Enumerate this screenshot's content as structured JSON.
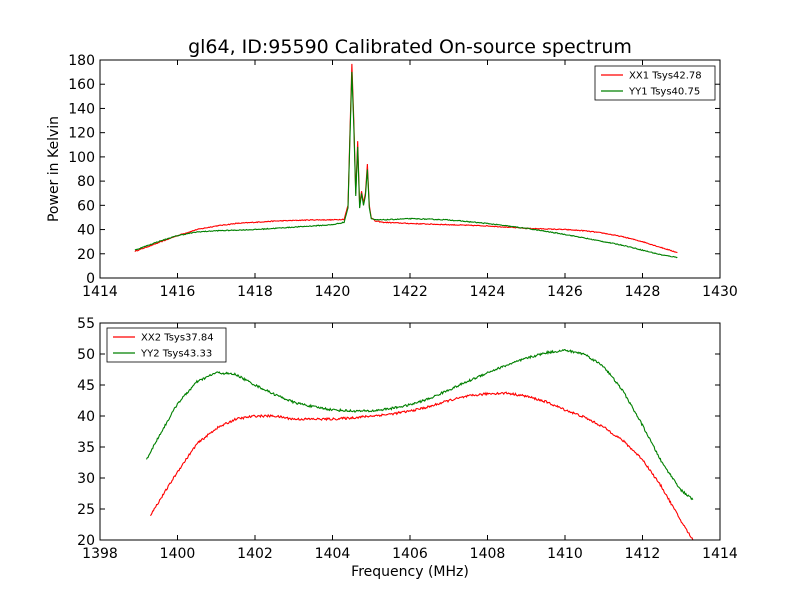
{
  "title": "gl64, ID:95590 Calibrated On-source spectrum",
  "colors": {
    "red": "#ff0000",
    "green": "#008000"
  },
  "chart_data": [
    {
      "type": "line",
      "ylabel": "Power in Kelvin",
      "xlabel": "",
      "xlim": [
        1414,
        1430
      ],
      "ylim": [
        0,
        180
      ],
      "xticks": [
        1414,
        1416,
        1418,
        1420,
        1422,
        1424,
        1426,
        1428,
        1430
      ],
      "yticks": [
        0,
        20,
        40,
        60,
        80,
        100,
        120,
        140,
        160,
        180
      ],
      "legend_position": "top-right",
      "series": [
        {
          "name": "XX1 Tsys42.78",
          "color": "#ff0000",
          "x": [
            1414.9,
            1415.5,
            1416.0,
            1416.5,
            1417.0,
            1417.5,
            1418.0,
            1418.5,
            1419.0,
            1419.5,
            1420.0,
            1420.3,
            1420.4,
            1420.45,
            1420.5,
            1420.55,
            1420.6,
            1420.65,
            1420.7,
            1420.75,
            1420.8,
            1420.85,
            1420.9,
            1420.95,
            1421.0,
            1421.1,
            1421.3,
            1422.0,
            1423.0,
            1424.0,
            1425.0,
            1426.0,
            1426.5,
            1427.0,
            1427.5,
            1428.0,
            1428.5,
            1428.9
          ],
          "values": [
            22,
            29,
            35,
            40,
            43,
            45,
            46,
            47,
            47.5,
            48,
            48,
            48.5,
            60,
            120,
            177,
            130,
            70,
            113,
            60,
            72,
            62,
            70,
            94,
            60,
            50,
            47,
            46,
            45,
            44,
            43,
            41,
            40,
            39,
            37,
            34,
            30,
            25,
            21
          ]
        },
        {
          "name": "YY1 Tsys40.75",
          "color": "#008000",
          "x": [
            1414.9,
            1415.5,
            1416.0,
            1416.5,
            1417.0,
            1417.5,
            1418.0,
            1418.5,
            1419.0,
            1419.5,
            1420.0,
            1420.3,
            1420.4,
            1420.45,
            1420.5,
            1420.55,
            1420.6,
            1420.65,
            1420.7,
            1420.75,
            1420.8,
            1420.85,
            1420.9,
            1420.95,
            1421.0,
            1421.1,
            1421.3,
            1422.0,
            1423.0,
            1424.0,
            1425.0,
            1426.0,
            1426.5,
            1427.0,
            1427.5,
            1428.0,
            1428.5,
            1428.9
          ],
          "values": [
            23,
            30,
            35,
            38,
            39,
            39.5,
            40,
            41,
            42,
            43,
            44,
            46,
            58,
            115,
            170,
            125,
            68,
            108,
            58,
            70,
            60,
            68,
            90,
            58,
            49,
            48,
            48,
            49,
            48,
            45,
            41,
            36,
            33,
            30,
            27,
            23,
            19,
            17
          ]
        }
      ]
    },
    {
      "type": "line",
      "ylabel": "",
      "xlabel": "Frequency (MHz)",
      "xlim": [
        1398,
        1414
      ],
      "ylim": [
        20,
        55
      ],
      "xticks": [
        1398,
        1400,
        1402,
        1404,
        1406,
        1408,
        1410,
        1412,
        1414
      ],
      "yticks": [
        20,
        25,
        30,
        35,
        40,
        45,
        50,
        55
      ],
      "legend_position": "top-left",
      "series": [
        {
          "name": "XX2 Tsys37.84",
          "color": "#ff0000",
          "x": [
            1399.3,
            1399.5,
            1400.0,
            1400.5,
            1401.0,
            1401.5,
            1402.0,
            1402.5,
            1403.0,
            1403.5,
            1404.0,
            1404.5,
            1405.0,
            1405.5,
            1406.0,
            1406.5,
            1407.0,
            1407.5,
            1408.0,
            1408.5,
            1409.0,
            1409.5,
            1410.0,
            1410.5,
            1411.0,
            1411.5,
            1412.0,
            1412.5,
            1413.0,
            1413.3
          ],
          "values": [
            24,
            26,
            31,
            35.5,
            38,
            39.5,
            40,
            40,
            39.5,
            39.5,
            39.5,
            39.7,
            40,
            40.3,
            40.8,
            41.5,
            42.5,
            43.2,
            43.6,
            43.7,
            43.2,
            42.3,
            41,
            39.8,
            38.2,
            36,
            33,
            28.5,
            23,
            20
          ]
        },
        {
          "name": "YY2 Tsys43.33",
          "color": "#008000",
          "x": [
            1399.2,
            1399.5,
            1400.0,
            1400.5,
            1401.0,
            1401.5,
            1402.0,
            1402.5,
            1403.0,
            1403.5,
            1404.0,
            1404.5,
            1405.0,
            1405.5,
            1406.0,
            1406.5,
            1407.0,
            1407.5,
            1408.0,
            1408.5,
            1409.0,
            1409.5,
            1410.0,
            1410.5,
            1411.0,
            1411.5,
            1412.0,
            1412.5,
            1413.0,
            1413.3
          ],
          "values": [
            33,
            36.5,
            42,
            45.5,
            47,
            46.7,
            45,
            43.5,
            42.2,
            41.5,
            41,
            40.8,
            40.8,
            41.2,
            41.8,
            42.8,
            44.2,
            45.6,
            47,
            48.2,
            49.3,
            50.2,
            50.6,
            50,
            48,
            44,
            38.5,
            32.5,
            28,
            26.5
          ]
        }
      ]
    }
  ]
}
